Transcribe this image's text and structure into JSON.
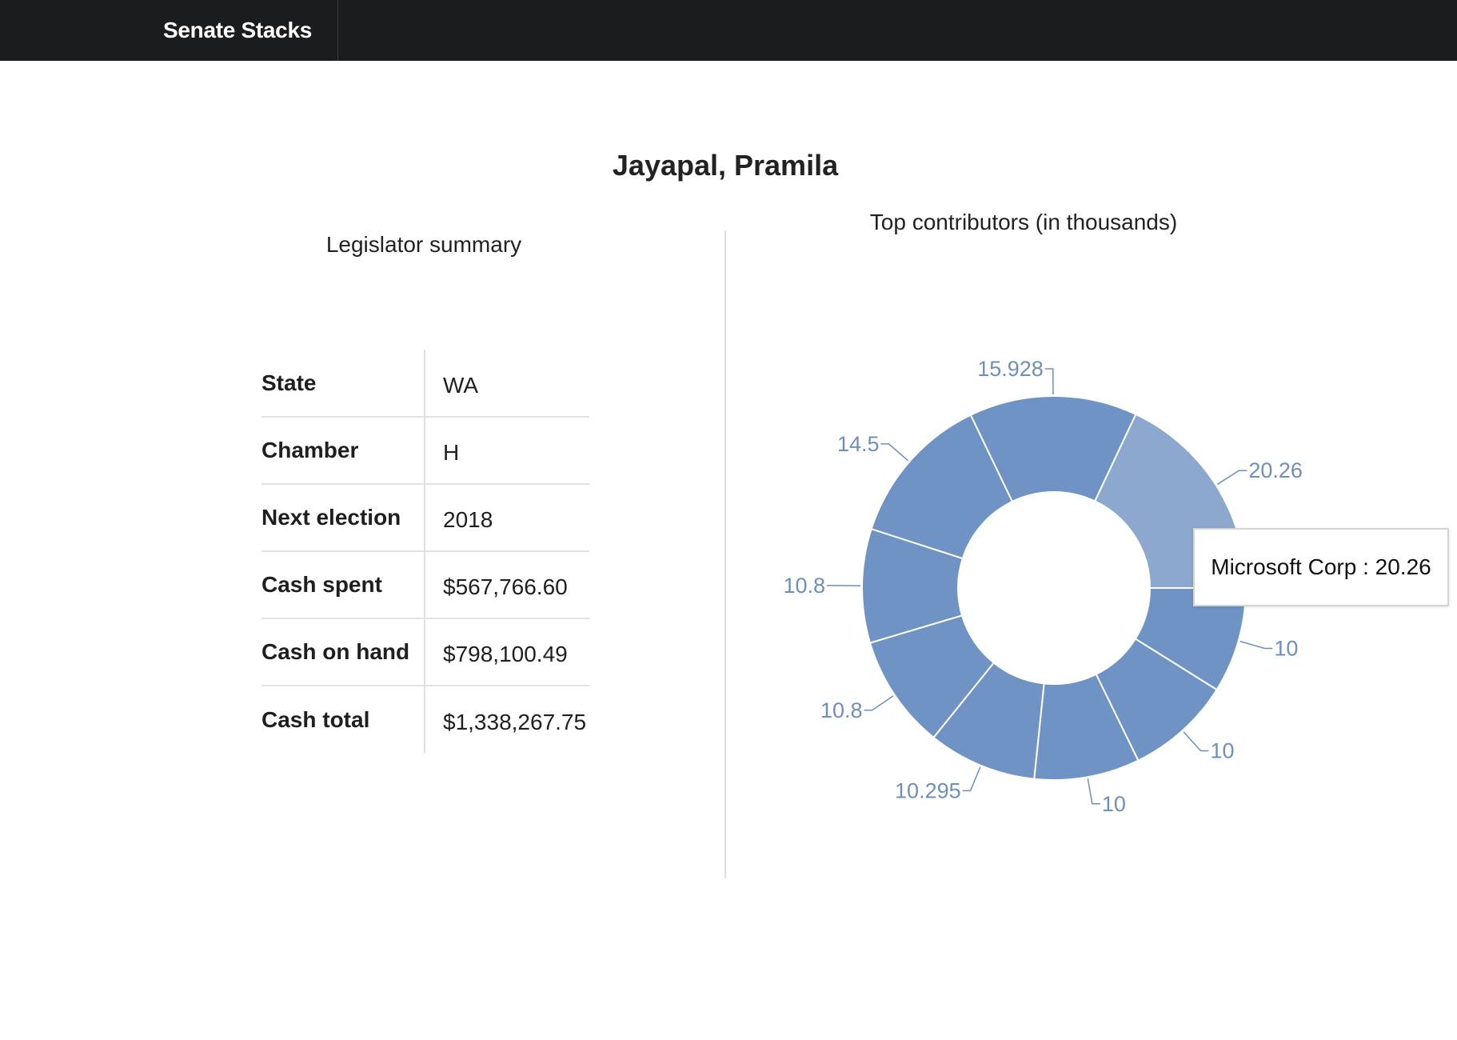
{
  "navbar": {
    "brand": "Senate Stacks"
  },
  "page": {
    "title": "Jayapal, Pramila"
  },
  "summary": {
    "title": "Legislator summary",
    "rows": [
      {
        "label": "State",
        "value": "WA"
      },
      {
        "label": "Chamber",
        "value": "H"
      },
      {
        "label": "Next election",
        "value": "2018"
      },
      {
        "label": "Cash spent",
        "value": "$567,766.60"
      },
      {
        "label": "Cash on hand",
        "value": "$798,100.49"
      },
      {
        "label": "Cash total",
        "value": "$1,338,267.75"
      }
    ]
  },
  "tooltip": {
    "text": "Microsoft Corp : 20.26"
  },
  "colors": {
    "slice": "#6f93c4",
    "highlight": "#8ca8cf",
    "label": "#6e8fbd",
    "navbar": "#1b1c1d"
  },
  "chart_data": {
    "type": "pie",
    "title": "Top contributors (in thousands)",
    "donut": true,
    "highlighted": "Microsoft Corp",
    "slices": [
      {
        "name": "Microsoft Corp",
        "value": 20.26,
        "label": "20.26"
      },
      {
        "name": "",
        "value": 10,
        "label": "10"
      },
      {
        "name": "",
        "value": 10,
        "label": "10"
      },
      {
        "name": "",
        "value": 10,
        "label": "10"
      },
      {
        "name": "",
        "value": 10.295,
        "label": "10.295"
      },
      {
        "name": "",
        "value": 10.8,
        "label": "10.8"
      },
      {
        "name": "",
        "value": 10.8,
        "label": "10.8"
      },
      {
        "name": "",
        "value": 14.5,
        "label": "14.5"
      },
      {
        "name": "",
        "value": 15.928,
        "label": "15.928"
      }
    ]
  }
}
